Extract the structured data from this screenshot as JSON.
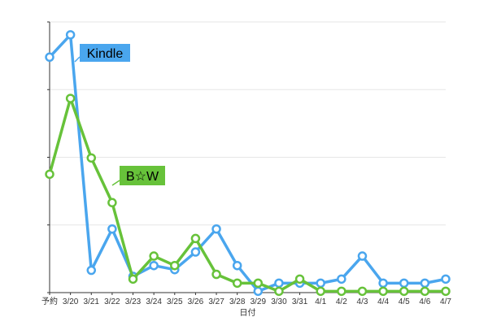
{
  "chart_data": {
    "type": "line",
    "title": "",
    "xlabel": "日付",
    "ylabel": "",
    "categories": [
      "予約",
      "3/20",
      "3/21",
      "3/22",
      "3/23",
      "3/24",
      "3/25",
      "3/26",
      "3/27",
      "3/28",
      "3/29",
      "3/30",
      "3/31",
      "4/1",
      "4/2",
      "4/3",
      "4/4",
      "4/5",
      "4/6",
      "4/7"
    ],
    "ylim": [
      0,
      4
    ],
    "yticks": [
      0,
      1,
      2,
      3,
      4
    ],
    "grid": true,
    "series": [
      {
        "name": "Kindle",
        "color": "#4aa6ee",
        "values": [
          3.48,
          3.81,
          0.33,
          0.94,
          0.24,
          0.4,
          0.34,
          0.6,
          0.94,
          0.4,
          0.02,
          0.14,
          0.14,
          0.14,
          0.2,
          0.54,
          0.14,
          0.14,
          0.14,
          0.2
        ]
      },
      {
        "name": "B☆W",
        "color": "#67c23a",
        "values": [
          1.75,
          2.87,
          1.99,
          1.33,
          0.2,
          0.54,
          0.4,
          0.8,
          0.27,
          0.14,
          0.14,
          0.02,
          0.2,
          0.02,
          0.02,
          0.02,
          0.02,
          0.02,
          0.02,
          0.02
        ]
      }
    ]
  }
}
